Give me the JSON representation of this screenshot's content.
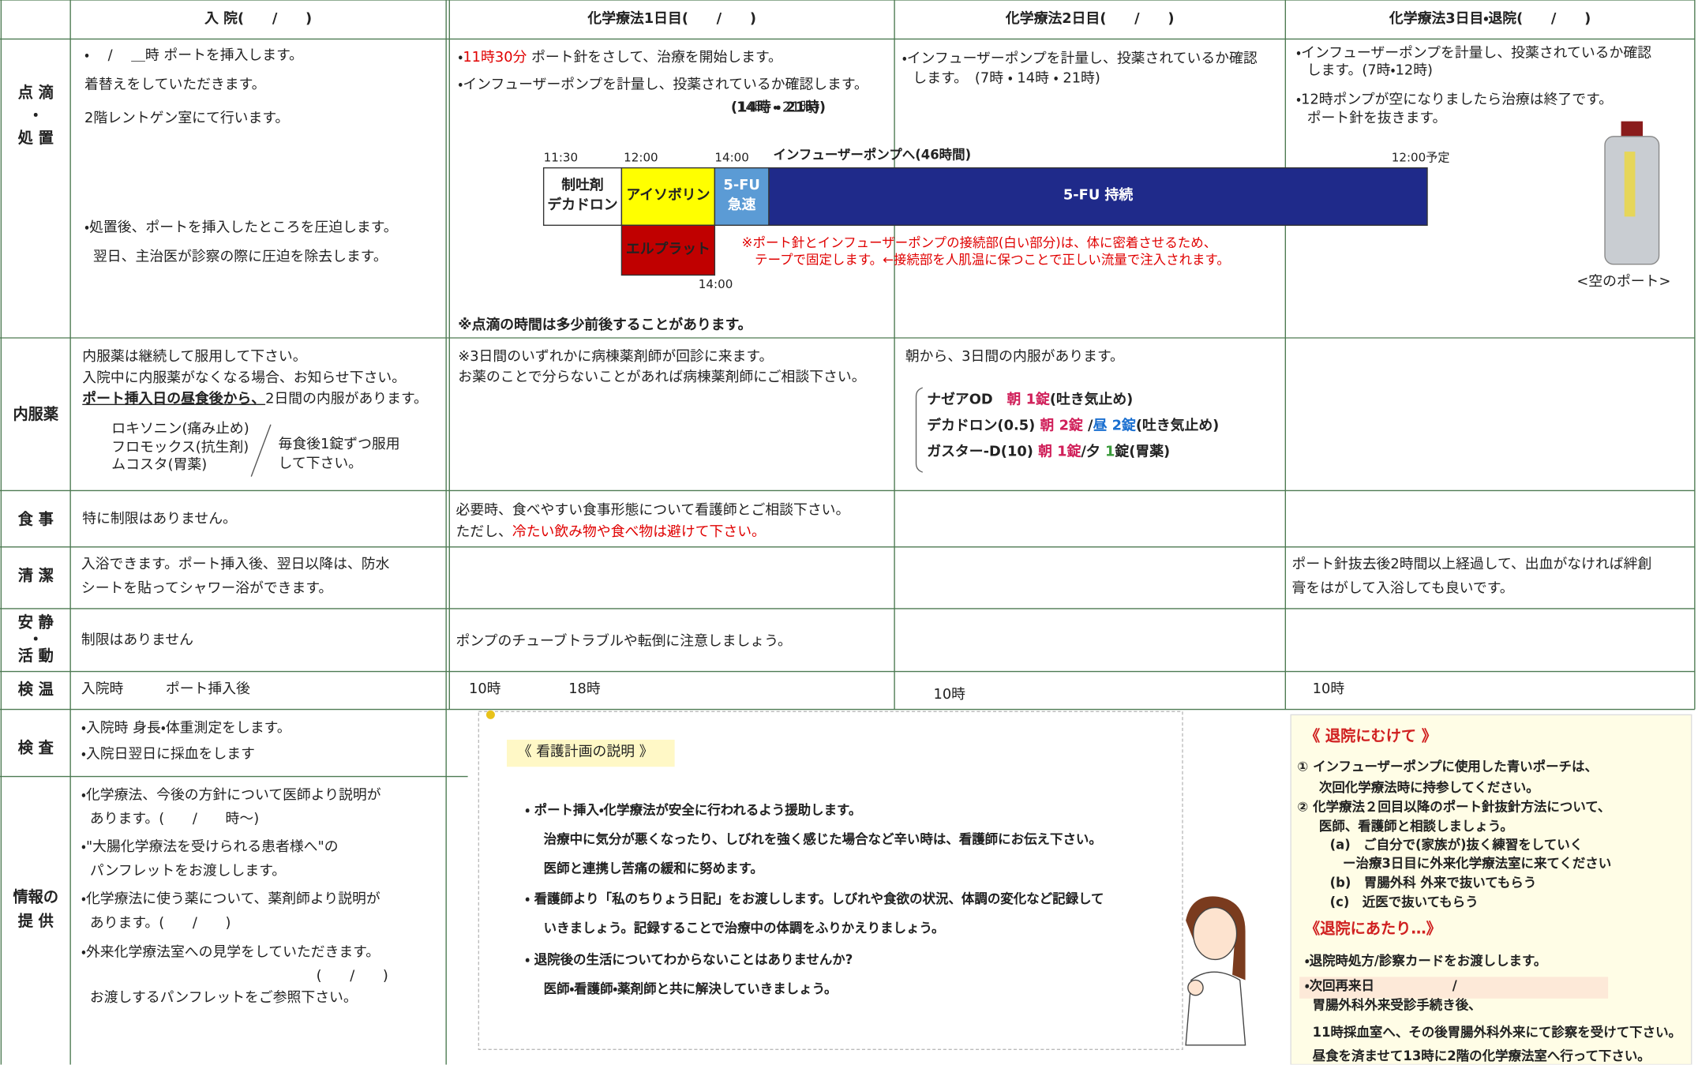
{
  "header": {
    "columns": [
      "入 院(　　/　　)",
      "化学療法1日目(　　/　　)",
      "化学療法2日目(　　/　　)",
      "化学療法3日目・退院(　　/　　)"
    ]
  },
  "drip": {
    "label": [
      "点 滴",
      "・",
      "処 置"
    ],
    "admission": [
      "・　 /　 ＿時 ポートを挿入します。",
      "着替えをしていただきます。",
      "2階レントゲン室にて行います。",
      "・処置後、ポートを挿入したところを圧迫します。",
      "翌日、主治医が診察の際に圧迫を除去します。"
    ],
    "day1": [
      [
        {
          "text": "・"
        },
        {
          "text": "11時30分",
          "color": "#e00000"
        },
        {
          "text": " ポート針をさして、治療を開始します。"
        }
      ],
      "・インフューザーポンプを計量し、投薬されているか確認します。",
      "(14時 ・ 21時)"
    ],
    "day1_note": "※点滴の時間は多少前後することがあります。",
    "day2": [
      "・インフューザーポンプを計量し、投薬されているか確認",
      "します。　(7時 ・ 14時 ・ 21時)"
    ],
    "day3": [
      "・インフューザーポンプを計量し、投薬されているか確認",
      "します。(7時・12時)",
      "・12時ポンプが空になりましたら治療は終了です。",
      "ポート針を抜きます。"
    ],
    "photo_caption": "<空のポート>",
    "timeline": {
      "times": [
        "11:30",
        "12:00",
        "14:00",
        "12:00予定",
        "14:00"
      ],
      "pump_label": "インフューザーポンプへ(46時間)",
      "blocks": [
        [
          "制吐剤",
          "デカドロン"
        ],
        [
          "アイソボリン"
        ],
        [
          "5-FU",
          "急速"
        ],
        [
          "5-FU 持続"
        ],
        [
          "エルプラット"
        ]
      ],
      "note": [
        "※ポート針とインフューザーポンプの接続部(白い部分)は、体に密着させるため、",
        "テープで固定します。←接続部を人肌温に保つことで正しい流量で注入されます。"
      ]
    }
  },
  "oral": {
    "label": [
      "内服薬"
    ],
    "admission": [
      "内服薬は継続して服用して下さい。",
      "入院中に内服薬がなくなる場合、お知らせ下さい。",
      [
        {
          "text": "ポート挿入日の昼食後から、",
          "underline": true,
          "bold": true
        },
        {
          "text": "2日間の内服があります。"
        }
      ]
    ],
    "admission_drugs": [
      "ロキソニン(痛み止め)",
      "フロモックス(抗生剤)",
      "ムコスタ(胃薬)"
    ],
    "admission_instruction": [
      "毎食後1錠ずつ服用",
      "して下さい。"
    ],
    "day1": [
      "※3日間のいずれかに病棟薬剤師が回診に来ます。",
      "お薬のことで分らないことがあれば病棟薬剤師にご相談下さい。"
    ],
    "day2": [
      "朝から、3日間の内服があります。"
    ],
    "day2_drugs": [
      [
        {
          "text": "ナゼアOD　"
        },
        {
          "text": "朝 1錠",
          "color": "#d0205a"
        },
        {
          "text": "(吐き気止め)"
        }
      ],
      [
        {
          "text": "デカドロン(0.5) "
        },
        {
          "text": "朝 2錠",
          "color": "#d0205a"
        },
        {
          "text": " /"
        },
        {
          "text": "昼 2錠",
          "color": "#1a6fd0"
        },
        {
          "text": "(吐き気止め)"
        }
      ],
      [
        {
          "text": "ガスター-D(10) "
        },
        {
          "text": "朝 1錠",
          "color": "#d0205a"
        },
        {
          "text": "/夕 "
        },
        {
          "text": "1",
          "color": "#3a9a3a"
        },
        {
          "text": "錠(胃薬)"
        }
      ]
    ]
  },
  "meal": {
    "label": [
      "食 事"
    ],
    "admission": [
      "特に制限はありません。"
    ],
    "day1": [
      "必要時、食べやすい食事形態について看護師とご相談下さい。",
      [
        {
          "text": "ただし、"
        },
        {
          "text": "冷たい飲み物や食べ物は避けて下さい。",
          "color": "#e00000"
        }
      ]
    ]
  },
  "hygiene": {
    "label": [
      "清 潔"
    ],
    "admission": [
      "入浴できます。ポート挿入後、翌日以降は、防水",
      "シートを貼ってシャワー浴ができます。"
    ],
    "day3": [
      "ポート針抜去後2時間以上経過して、出血がなければ絆創",
      "膏をはがして入浴しても良いです。"
    ]
  },
  "activity": {
    "label": [
      "安 静",
      "・",
      "活 動"
    ],
    "admission": [
      "制限はありません"
    ],
    "day1": [
      "ポンプのチューブトラブルや転倒に注意しましょう。"
    ]
  },
  "temperature": {
    "label": [
      "検 温"
    ],
    "admission": [
      "入院時",
      "ポート挿入後"
    ],
    "day1": [
      "10時",
      "18時"
    ],
    "day2": [
      "10時"
    ],
    "day3": [
      "10時"
    ]
  },
  "exam": {
    "label": [
      "検 査"
    ],
    "admission": [
      "・入院時 身長・体重測定をします。",
      "・入院日翌日に採血をします"
    ]
  },
  "info": {
    "label": [
      "情報の",
      "提 供"
    ],
    "admission": [
      "・化学療法、今後の方針について医師より説明が",
      "あります。(　　/　　時～)",
      "・\"大腸化学療法を受けられる患者様へ\"の",
      "パンフレットをお渡しします。",
      "・化学療法に使う薬について、薬剤師より説明が",
      "あります。(　　/　　)",
      "・外来化学療法室への見学をしていただきます。",
      "(　　/　　)",
      "お渡しするパンフレットをご参照下さい。"
    ]
  },
  "nursing_plan": {
    "title": "《 看護計画の説明 》",
    "lines": [
      "・ ポート挿入・化学療法が安全に行われるよう援助します。",
      "治療中に気分が悪くなったり、しびれを強く感じた場合など辛い時は、看護師にお伝え下さい。",
      "医師と連携し苦痛の緩和に努めます。",
      "・ 看護師より「私のちりょう日記」をお渡しします。しびれや食欲の状況、体調の変化など記録して",
      "いきましょう。記録することで治療中の体調をふりかえりましょう。",
      "・ 退院後の生活についてわからないことはありませんか?",
      "医師・看護師・薬剤師と共に解決していきましょう。"
    ]
  },
  "discharge": {
    "title": "《 退院にむけて 》",
    "lines": [
      "① インフューザーポンプに使用した青いポーチは、",
      "次回化学療法時に持参してください。",
      "② 化学療法２回目以降のポート針抜針方法について、",
      "医師、看護師と相談しましょう。",
      "(a)　ご自分で(家族が)抜く練習をしていく",
      "ー治療3日目に外来化学療法室に来てください",
      "(b)　胃腸外科 外来で抜いてもらう",
      "(c)　近医で抜いてもらう"
    ],
    "title2": "《退院にあたり…》",
    "lines2": [
      "・退院時処方/診察カードをお渡しします。",
      "・次回再来日　　　　　　/",
      "胃腸外科外来受診手続き後、",
      "11時採血室へ、その後胃腸外科外来にて診察を受けて下さい。",
      "昼食を済ませて13時に2階の化学療法室へ行って下さい。"
    ]
  }
}
